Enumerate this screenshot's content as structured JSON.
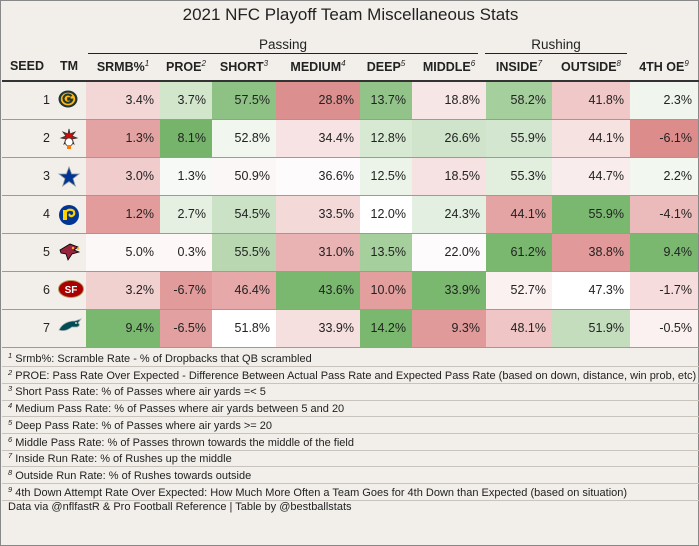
{
  "title": "2021 NFC Playoff Team Miscellaneous Stats",
  "groups": {
    "passing": "Passing",
    "rushing": "Rushing"
  },
  "headers": {
    "seed": "SEED",
    "tm": "TM",
    "srmb": "SRMB%",
    "srmb_sup": "1",
    "proe": "PROE",
    "proe_sup": "2",
    "short": "SHORT",
    "short_sup": "3",
    "medium": "MEDIUM",
    "medium_sup": "4",
    "deep": "DEEP",
    "deep_sup": "5",
    "middle": "MIDDLE",
    "middle_sup": "6",
    "inside": "INSIDE",
    "inside_sup": "7",
    "outside": "OUTSIDE",
    "outside_sup": "8",
    "foe": "4TH OE",
    "foe_sup": "9"
  },
  "columns": [
    "srmb",
    "proe",
    "short",
    "medium",
    "deep",
    "middle",
    "inside",
    "outside",
    "foe"
  ],
  "rows": [
    {
      "seed": "1",
      "team": "green-bay-packers",
      "cells": [
        {
          "v": "3.4%",
          "bg": "#f3d6d6"
        },
        {
          "v": "3.7%",
          "bg": "#d2e6cc"
        },
        {
          "v": "57.5%",
          "bg": "#8ec285"
        },
        {
          "v": "28.8%",
          "bg": "#dc8f8f"
        },
        {
          "v": "13.7%",
          "bg": "#92c489"
        },
        {
          "v": "18.8%",
          "bg": "#f7e6e6"
        },
        {
          "v": "58.2%",
          "bg": "#a6cf9e"
        },
        {
          "v": "41.8%",
          "bg": "#f0c8c8"
        },
        {
          "v": "2.3%",
          "bg": "#f0f6ee"
        }
      ]
    },
    {
      "seed": "2",
      "team": "tampa-bay-buccaneers",
      "cells": [
        {
          "v": "1.3%",
          "bg": "#e3a3a3"
        },
        {
          "v": "8.1%",
          "bg": "#76b46c"
        },
        {
          "v": "52.8%",
          "bg": "#f1f6ef"
        },
        {
          "v": "34.4%",
          "bg": "#f7e3e3"
        },
        {
          "v": "12.8%",
          "bg": "#d7e9d3"
        },
        {
          "v": "26.6%",
          "bg": "#cfe4cb"
        },
        {
          "v": "55.9%",
          "bg": "#d3e6cf"
        },
        {
          "v": "44.1%",
          "bg": "#f7e2e2"
        },
        {
          "v": "-6.1%",
          "bg": "#dd8c8c"
        }
      ]
    },
    {
      "seed": "3",
      "team": "dallas-cowboys",
      "cells": [
        {
          "v": "3.0%",
          "bg": "#f0cccc"
        },
        {
          "v": "1.3%",
          "bg": "#f6f9f5"
        },
        {
          "v": "50.9%",
          "bg": "#fcf7f7"
        },
        {
          "v": "36.6%",
          "bg": "#fdfbfb"
        },
        {
          "v": "12.5%",
          "bg": "#ecf4ea"
        },
        {
          "v": "18.5%",
          "bg": "#f6e2e2"
        },
        {
          "v": "55.3%",
          "bg": "#e2efdf"
        },
        {
          "v": "44.7%",
          "bg": "#f9ecec"
        },
        {
          "v": "2.2%",
          "bg": "#f2f7f0"
        }
      ]
    },
    {
      "seed": "4",
      "team": "los-angeles-rams",
      "cells": [
        {
          "v": "1.2%",
          "bg": "#e39c9c"
        },
        {
          "v": "2.7%",
          "bg": "#e5f0e2"
        },
        {
          "v": "54.5%",
          "bg": "#cbe2c6"
        },
        {
          "v": "33.5%",
          "bg": "#f4d9d9"
        },
        {
          "v": "12.0%",
          "bg": "#ffffff"
        },
        {
          "v": "24.3%",
          "bg": "#e3efe0"
        },
        {
          "v": "44.1%",
          "bg": "#e4a4a4"
        },
        {
          "v": "55.9%",
          "bg": "#7ab870"
        },
        {
          "v": "-4.1%",
          "bg": "#ebbaba"
        }
      ]
    },
    {
      "seed": "5",
      "team": "arizona-cardinals",
      "cells": [
        {
          "v": "5.0%",
          "bg": "#fdf8f8"
        },
        {
          "v": "0.3%",
          "bg": "#fdf7f7"
        },
        {
          "v": "55.5%",
          "bg": "#b9d8b2"
        },
        {
          "v": "31.0%",
          "bg": "#e9b3b3"
        },
        {
          "v": "13.5%",
          "bg": "#a6cf9e"
        },
        {
          "v": "22.0%",
          "bg": "#fdfbfb"
        },
        {
          "v": "61.2%",
          "bg": "#7ab870"
        },
        {
          "v": "38.8%",
          "bg": "#e19999"
        },
        {
          "v": "9.4%",
          "bg": "#7ab870"
        }
      ]
    },
    {
      "seed": "6",
      "team": "san-francisco-49ers",
      "cells": [
        {
          "v": "3.2%",
          "bg": "#f1d0d0"
        },
        {
          "v": "-6.7%",
          "bg": "#e29b9b"
        },
        {
          "v": "46.4%",
          "bg": "#e6a8a8"
        },
        {
          "v": "43.6%",
          "bg": "#7ab870"
        },
        {
          "v": "10.0%",
          "bg": "#e39e9e"
        },
        {
          "v": "33.9%",
          "bg": "#7ab870"
        },
        {
          "v": "52.7%",
          "bg": "#fbf1f1"
        },
        {
          "v": "47.3%",
          "bg": "#ffffff"
        },
        {
          "v": "-1.7%",
          "bg": "#f6dcdc"
        }
      ]
    },
    {
      "seed": "7",
      "team": "philadelphia-eagles",
      "cells": [
        {
          "v": "9.4%",
          "bg": "#7ab870"
        },
        {
          "v": "-6.5%",
          "bg": "#e3a0a0"
        },
        {
          "v": "51.8%",
          "bg": "#ffffff"
        },
        {
          "v": "33.9%",
          "bg": "#f6dfdf"
        },
        {
          "v": "14.2%",
          "bg": "#7ab870"
        },
        {
          "v": "9.3%",
          "bg": "#e19a9a"
        },
        {
          "v": "48.1%",
          "bg": "#efc5c5"
        },
        {
          "v": "51.9%",
          "bg": "#c3ddbd"
        },
        {
          "v": "-0.5%",
          "bg": "#fbf1f1"
        }
      ]
    }
  ],
  "notes": [
    {
      "sup": "1",
      "text": "Srmb%: Scramble Rate - % of Dropbacks that QB scrambled"
    },
    {
      "sup": "2",
      "text": "PROE: Pass Rate Over Expected - Difference Between Actual Pass Rate and Expected Pass Rate (based on down, distance, win prob, etc)"
    },
    {
      "sup": "3",
      "text": "Short Pass Rate: % of Passes where air yards =< 5"
    },
    {
      "sup": "4",
      "text": "Medium Pass Rate: % of Passes where air yards between 5 and 20"
    },
    {
      "sup": "5",
      "text": "Deep Pass Rate: % of Passes where air yards >= 20"
    },
    {
      "sup": "6",
      "text": "Middle Pass Rate: % of Passes thrown towards the middle of the field"
    },
    {
      "sup": "7",
      "text": "Inside Run Rate: % of Rushes up the middle"
    },
    {
      "sup": "8",
      "text": "Outside Run Rate: % of Rushes towards outside"
    },
    {
      "sup": "9",
      "text": "4th Down Attempt Rate Over Expected: How Much More Often a Team Goes for 4th Down than Expected (based on situation)"
    }
  ],
  "credit": "Data via @nflfastR & Pro Football Reference | Table by @bestballstats"
}
